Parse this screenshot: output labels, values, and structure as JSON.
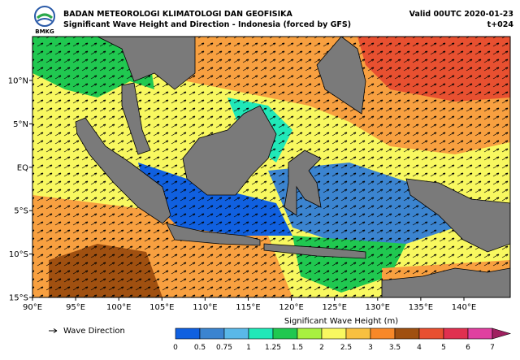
{
  "header": {
    "agency": "BADAN METEOROLOGI KLIMATOLOGI DAN GEOFISIKA",
    "title": "Significant Wave Height and Direction - Indonesia (forced by GFS)",
    "logo_text": "BMKG",
    "valid": "Valid 00UTC 2020-01-23",
    "lead_time": "t+024"
  },
  "map": {
    "lat_labels": [
      "10°N",
      "5°N",
      "EQ",
      "5°S",
      "10°S",
      "15°S"
    ],
    "lon_labels": [
      "90°E",
      "95°E",
      "100°E",
      "105°E",
      "110°E",
      "115°E",
      "120°E",
      "125°E",
      "130°E",
      "135°E",
      "140°E"
    ]
  },
  "legend": {
    "wave_direction": "Wave Direction"
  },
  "colorbar": {
    "title": "Significant Wave Height (m)",
    "levels": [
      0,
      0.5,
      0.75,
      1,
      1.25,
      1.5,
      2,
      2.5,
      3,
      3.5,
      4,
      5,
      6,
      7
    ],
    "colors": [
      "#1060e0",
      "#3b84d0",
      "#5ab8e8",
      "#20e8b8",
      "#20c850",
      "#a8f040",
      "#f8f860",
      "#f8c040",
      "#f88828",
      "#a05010",
      "#e85030",
      "#e03050",
      "#e040a0",
      "#a02060"
    ]
  }
}
